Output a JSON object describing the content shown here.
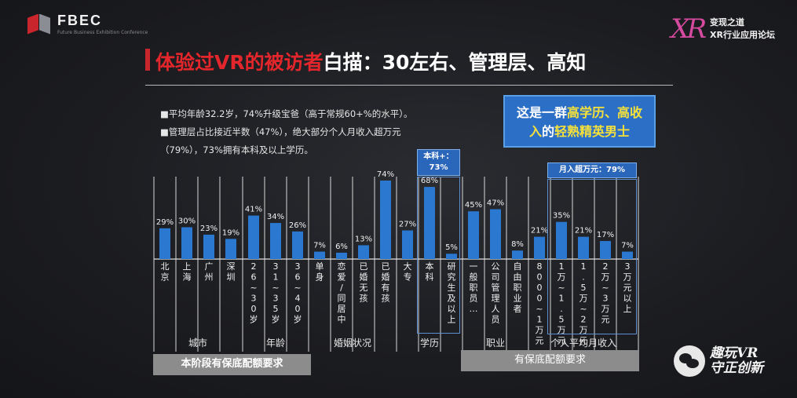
{
  "header": {
    "left_logo_text": "FBEC",
    "left_logo_sub": "Future Business Exhibition Conference",
    "right_logo_mark": "XR",
    "right_logo_line1": "变现之道",
    "right_logo_line2": "XR行业应用论坛"
  },
  "title": {
    "red_part": "体验过VR的被访者",
    "white_part": "白描：30左右、管理层、高知"
  },
  "bullets": [
    "■平均年龄32.2岁，74%升级宝爸（高于常规60+%的水平）。",
    "■管理层占比接近半数（47%），绝大部分个人月收入超万元",
    "（79%），73%拥有本科及以上学历。"
  ],
  "callout": {
    "line1_prefix": "这是一群",
    "line1_highlight": "高学历、高收",
    "line2_highlight1": "入",
    "line2_mid": "的",
    "line2_highlight2": "轻熟精英男士"
  },
  "tags": {
    "education_line1": "本科+：",
    "education_line2": "73%",
    "income": "月入超万元：79%"
  },
  "footer": {
    "left_bar": "本阶段有保底配额要求",
    "right_bar": "有保底配额要求"
  },
  "watermark": {
    "line1": "趣玩VR",
    "line2": "守正创新"
  },
  "colors": {
    "bar": "#2a78d0",
    "title_red": "#e3262b",
    "callout_bg": "#2c6fc7",
    "highlight": "#f6e13a"
  },
  "chart_data": {
    "type": "bar",
    "ylim": [
      0,
      80
    ],
    "groups": [
      {
        "name": "城市",
        "categories": [
          "北京",
          "上海",
          "广州",
          "深圳"
        ],
        "values": [
          29,
          30,
          23,
          19
        ],
        "labels": [
          "29%",
          "30%",
          "23%",
          "19%"
        ]
      },
      {
        "name": "年龄",
        "categories": [
          "26~30岁",
          "31~35岁",
          "36~40岁"
        ],
        "values": [
          41,
          34,
          26
        ],
        "labels": [
          "41%",
          "34%",
          "26%"
        ]
      },
      {
        "name": "婚姻状况",
        "categories": [
          "单身",
          "恋爱/同居中",
          "已婚无孩",
          "已婚有孩"
        ],
        "values": [
          7,
          6,
          13,
          74
        ],
        "labels": [
          "7%",
          "6%",
          "13%",
          "74%"
        ]
      },
      {
        "name": "学历",
        "categories": [
          "大专",
          "本科",
          "研究生及以上"
        ],
        "values": [
          27,
          68,
          5
        ],
        "labels": [
          "27%",
          "68%",
          "5%"
        ]
      },
      {
        "name": "职业",
        "categories": [
          "一般职员…",
          "公司管理人员",
          "自由职业者"
        ],
        "values": [
          45,
          47,
          8
        ],
        "labels": [
          "45%",
          "47%",
          "8%"
        ]
      },
      {
        "name": "个人平均月收入",
        "categories": [
          "8000~1万元",
          "1万~1.5万元",
          "1.5万~2万元",
          "2万~3万元",
          "3万元以上"
        ],
        "values": [
          21,
          35,
          21,
          17,
          7
        ],
        "labels": [
          "21%",
          "35%",
          "21%",
          "17%",
          "7%"
        ]
      }
    ]
  }
}
